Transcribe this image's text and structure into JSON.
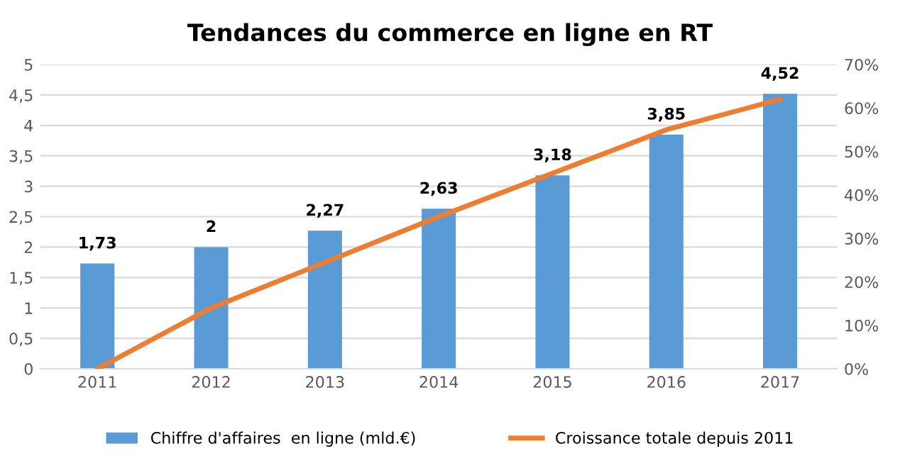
{
  "chart_data": {
    "type": "bar",
    "title": "Tendances du commerce en ligne en RT",
    "categories": [
      "2011",
      "2012",
      "2013",
      "2014",
      "2015",
      "2016",
      "2017"
    ],
    "series": [
      {
        "name": "Chiffre d'affaires  en ligne (mld.€)",
        "color": "#5b9bd5",
        "values": [
          1.73,
          2,
          2.27,
          2.63,
          3.18,
          3.85,
          4.52
        ],
        "value_labels": [
          "1,73",
          "2",
          "2,27",
          "2,63",
          "3,18",
          "3,85",
          "4,52"
        ]
      },
      {
        "name": "Croissance totale depuis 2011",
        "type": "line",
        "axis": "y2",
        "color": "#ed7d31",
        "values": [
          0,
          14,
          24.5,
          35,
          45,
          55,
          62
        ]
      }
    ],
    "ylim": [
      0,
      5
    ],
    "yticks": [
      0,
      {
        "value": 0.5,
        "label": "0,5"
      },
      1,
      {
        "value": 1.5,
        "label": "1,5"
      },
      2,
      {
        "value": 2.5,
        "label": "2,5"
      },
      3,
      {
        "value": 3.5,
        "label": "3,5"
      },
      4,
      {
        "value": 4.5,
        "label": "4,5"
      },
      5
    ],
    "y2lim": [
      0,
      70
    ],
    "y2ticks": [
      {
        "value": 0,
        "label": "0%"
      },
      {
        "value": 10,
        "label": "10%"
      },
      {
        "value": 20,
        "label": "20%"
      },
      {
        "value": 30,
        "label": "30%"
      },
      {
        "value": 40,
        "label": "40%"
      },
      {
        "value": 50,
        "label": "50%"
      },
      {
        "value": 60,
        "label": "60%"
      },
      {
        "value": 70,
        "label": "70%"
      }
    ],
    "grid": "y",
    "legend": "bottom"
  }
}
